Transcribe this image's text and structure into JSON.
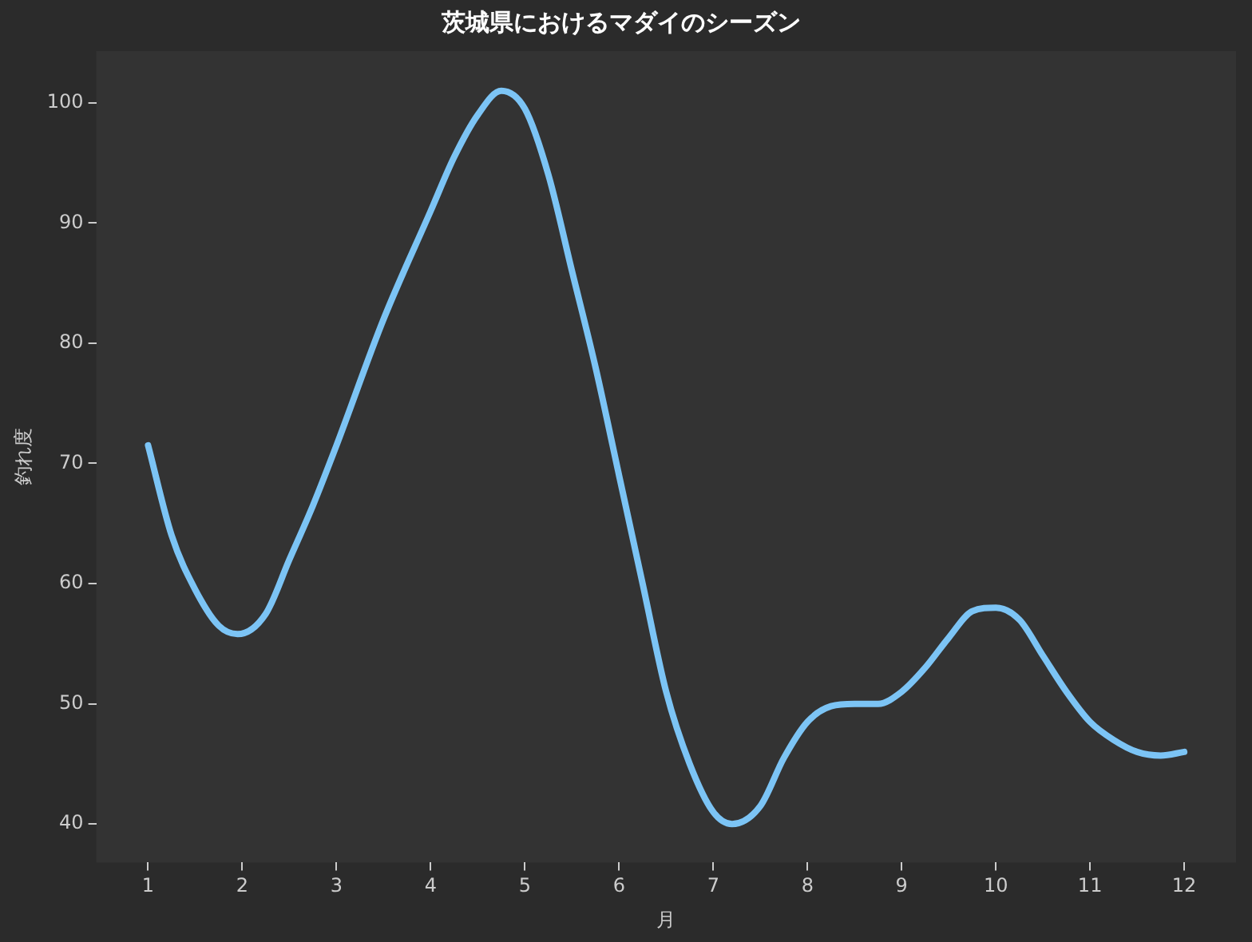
{
  "chart_data": {
    "type": "line",
    "title": "茨城県におけるマダイのシーズン",
    "xlabel": "月",
    "ylabel": "釣れ度",
    "x": [
      1,
      1.25,
      1.5,
      1.75,
      1.95,
      2.25,
      2.5,
      2.75,
      3,
      3.5,
      4,
      4.25,
      4.5,
      4.75,
      5,
      5.25,
      5.5,
      5.75,
      6,
      6.25,
      6.5,
      6.75,
      7,
      7.2,
      7.5,
      7.75,
      8,
      8.25,
      8.5,
      8.75,
      9,
      9.25,
      9.5,
      9.75,
      10,
      10.25,
      10.5,
      10.75,
      11,
      11.25,
      11.5,
      11.75,
      12
    ],
    "series": [
      {
        "color": "#7cc4f5",
        "values": [
          71.5,
          64,
          59.5,
          56.5,
          55.8,
          57.5,
          62,
          66.5,
          71.5,
          82,
          91,
          95.5,
          99,
          101,
          99.5,
          94,
          86,
          78,
          69,
          60,
          51,
          45,
          41,
          40,
          41.5,
          45.5,
          48.5,
          49.8,
          50,
          50,
          51,
          53,
          55.5,
          57.7,
          58,
          57,
          54,
          51,
          48.5,
          47,
          46,
          45.7,
          46
        ]
      }
    ],
    "xlim": [
      0.45,
      12.55
    ],
    "xticks": [
      1,
      2,
      3,
      4,
      5,
      6,
      7,
      8,
      9,
      10,
      11,
      12
    ],
    "ylim": [
      36.8,
      104.3
    ],
    "yticks": [
      40,
      50,
      60,
      70,
      80,
      90,
      100
    ],
    "grid": false,
    "legend": false,
    "marker": "none",
    "line_style": "solid"
  }
}
